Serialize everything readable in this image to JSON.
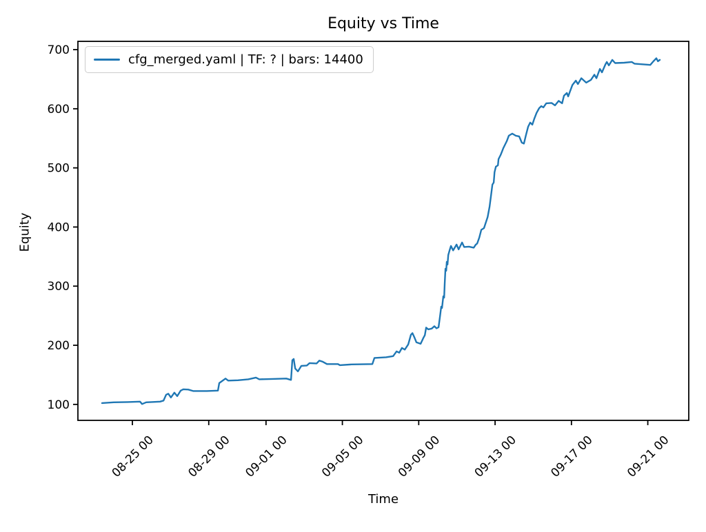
{
  "colors": {
    "line": "#1f77b4",
    "text": "#000000",
    "legend_border": "#cccccc",
    "background": "#ffffff"
  },
  "chart_data": {
    "type": "line",
    "title": "Equity vs Time",
    "xlabel": "Time",
    "ylabel": "Equity",
    "legend": [
      "cfg_merged.yaml | TF: ? | bars: 14400"
    ],
    "legend_position": "upper left",
    "grid": false,
    "x_unit": "days since 08-25 00:00; tick labels are MM-DD HH",
    "xlim": [
      -2.854,
      29.146
    ],
    "ylim": [
      73,
      714
    ],
    "x_tick_days": [
      0,
      4,
      7,
      11,
      15,
      19,
      23,
      27
    ],
    "x_tick_labels": [
      "08-25 00",
      "08-29 00",
      "09-01 00",
      "09-05 00",
      "09-09 00",
      "09-13 00",
      "09-17 00",
      "09-21 00"
    ],
    "y_ticks": [
      100,
      200,
      300,
      400,
      500,
      600,
      700
    ],
    "series": [
      {
        "name": "cfg_merged.yaml | TF: ? | bars: 14400",
        "color": "#1f77b4",
        "points": [
          [
            -1.59,
            102.3
          ],
          [
            -0.98,
            103.5
          ],
          [
            -0.25,
            104.0
          ],
          [
            0.4,
            104.7
          ],
          [
            0.51,
            100.6
          ],
          [
            0.72,
            103.5
          ],
          [
            1.45,
            104.7
          ],
          [
            1.63,
            106.4
          ],
          [
            1.77,
            116.3
          ],
          [
            1.88,
            118.1
          ],
          [
            2.02,
            111.7
          ],
          [
            2.2,
            119.8
          ],
          [
            2.35,
            114.0
          ],
          [
            2.53,
            123.3
          ],
          [
            2.67,
            125.6
          ],
          [
            2.93,
            125.1
          ],
          [
            3.18,
            122.7
          ],
          [
            3.9,
            122.7
          ],
          [
            4.48,
            123.3
          ],
          [
            4.55,
            136.1
          ],
          [
            4.7,
            139.6
          ],
          [
            4.88,
            143.7
          ],
          [
            5.02,
            140.2
          ],
          [
            5.53,
            140.8
          ],
          [
            6.07,
            142.5
          ],
          [
            6.47,
            145.4
          ],
          [
            6.65,
            142.5
          ],
          [
            7.33,
            143.1
          ],
          [
            8.06,
            143.7
          ],
          [
            8.31,
            141.4
          ],
          [
            8.38,
            174.6
          ],
          [
            8.45,
            176.9
          ],
          [
            8.53,
            160.6
          ],
          [
            8.67,
            155.9
          ],
          [
            8.85,
            165.2
          ],
          [
            9.14,
            165.8
          ],
          [
            9.28,
            169.9
          ],
          [
            9.65,
            169.3
          ],
          [
            9.79,
            174.0
          ],
          [
            9.97,
            172.2
          ],
          [
            10.19,
            168.2
          ],
          [
            10.77,
            168.2
          ],
          [
            10.87,
            166.4
          ],
          [
            11.49,
            167.6
          ],
          [
            12.57,
            168.2
          ],
          [
            12.68,
            178.6
          ],
          [
            13.29,
            179.8
          ],
          [
            13.66,
            181.6
          ],
          [
            13.84,
            189.7
          ],
          [
            13.98,
            187.4
          ],
          [
            14.12,
            195.5
          ],
          [
            14.27,
            192.6
          ],
          [
            14.45,
            201.4
          ],
          [
            14.59,
            217.7
          ],
          [
            14.67,
            220.6
          ],
          [
            14.78,
            213.0
          ],
          [
            14.88,
            204.9
          ],
          [
            15.1,
            202.5
          ],
          [
            15.25,
            213.0
          ],
          [
            15.32,
            217.1
          ],
          [
            15.39,
            229.9
          ],
          [
            15.5,
            227.0
          ],
          [
            15.68,
            228.2
          ],
          [
            15.82,
            232.2
          ],
          [
            15.93,
            228.7
          ],
          [
            16.04,
            230.5
          ],
          [
            16.11,
            248.0
          ],
          [
            16.18,
            265.4
          ],
          [
            16.22,
            263.1
          ],
          [
            16.29,
            282.9
          ],
          [
            16.33,
            280.6
          ],
          [
            16.36,
            303.9
          ],
          [
            16.4,
            329.5
          ],
          [
            16.44,
            326.0
          ],
          [
            16.47,
            341.2
          ],
          [
            16.51,
            336.5
          ],
          [
            16.55,
            352.8
          ],
          [
            16.62,
            361.0
          ],
          [
            16.69,
            368.0
          ],
          [
            16.8,
            360.4
          ],
          [
            16.98,
            370.3
          ],
          [
            17.09,
            362.1
          ],
          [
            17.27,
            373.8
          ],
          [
            17.38,
            366.2
          ],
          [
            17.63,
            366.8
          ],
          [
            17.88,
            365.1
          ],
          [
            17.99,
            370.3
          ],
          [
            18.06,
            372.0
          ],
          [
            18.17,
            381.9
          ],
          [
            18.28,
            395.3
          ],
          [
            18.42,
            398.2
          ],
          [
            18.61,
            416.9
          ],
          [
            18.71,
            434.4
          ],
          [
            18.79,
            454.2
          ],
          [
            18.86,
            471.7
          ],
          [
            18.93,
            475.2
          ],
          [
            18.97,
            492.7
          ],
          [
            19.04,
            502.0
          ],
          [
            19.15,
            504.3
          ],
          [
            19.18,
            514.8
          ],
          [
            19.29,
            521.8
          ],
          [
            19.36,
            527.6
          ],
          [
            19.43,
            533.4
          ],
          [
            19.61,
            545.1
          ],
          [
            19.72,
            554.4
          ],
          [
            19.9,
            557.9
          ],
          [
            20.08,
            554.4
          ],
          [
            20.26,
            553.3
          ],
          [
            20.4,
            542.8
          ],
          [
            20.51,
            541.0
          ],
          [
            20.62,
            555.6
          ],
          [
            20.73,
            569.6
          ],
          [
            20.84,
            576.6
          ],
          [
            20.95,
            573.1
          ],
          [
            21.06,
            583.6
          ],
          [
            21.17,
            592.9
          ],
          [
            21.31,
            601.0
          ],
          [
            21.42,
            604.5
          ],
          [
            21.53,
            602.2
          ],
          [
            21.68,
            609.2
          ],
          [
            21.96,
            609.8
          ],
          [
            22.14,
            605.7
          ],
          [
            22.33,
            613.3
          ],
          [
            22.51,
            609.2
          ],
          [
            22.61,
            622.0
          ],
          [
            22.76,
            626.7
          ],
          [
            22.83,
            620.9
          ],
          [
            23.05,
            640.1
          ],
          [
            23.23,
            647.6
          ],
          [
            23.34,
            641.8
          ],
          [
            23.52,
            651.7
          ],
          [
            23.77,
            644.2
          ],
          [
            24.02,
            648.8
          ],
          [
            24.2,
            657.6
          ],
          [
            24.31,
            651.7
          ],
          [
            24.49,
            667.4
          ],
          [
            24.6,
            661.6
          ],
          [
            24.78,
            675.0
          ],
          [
            24.85,
            679.1
          ],
          [
            24.96,
            673.3
          ],
          [
            25.14,
            682.6
          ],
          [
            25.29,
            677.3
          ],
          [
            25.76,
            677.9
          ],
          [
            26.16,
            679.1
          ],
          [
            26.3,
            676.2
          ],
          [
            26.66,
            675.3
          ],
          [
            27.13,
            674.1
          ],
          [
            27.31,
            680.9
          ],
          [
            27.45,
            685.5
          ],
          [
            27.53,
            680.3
          ],
          [
            27.63,
            682.6
          ]
        ]
      }
    ]
  }
}
